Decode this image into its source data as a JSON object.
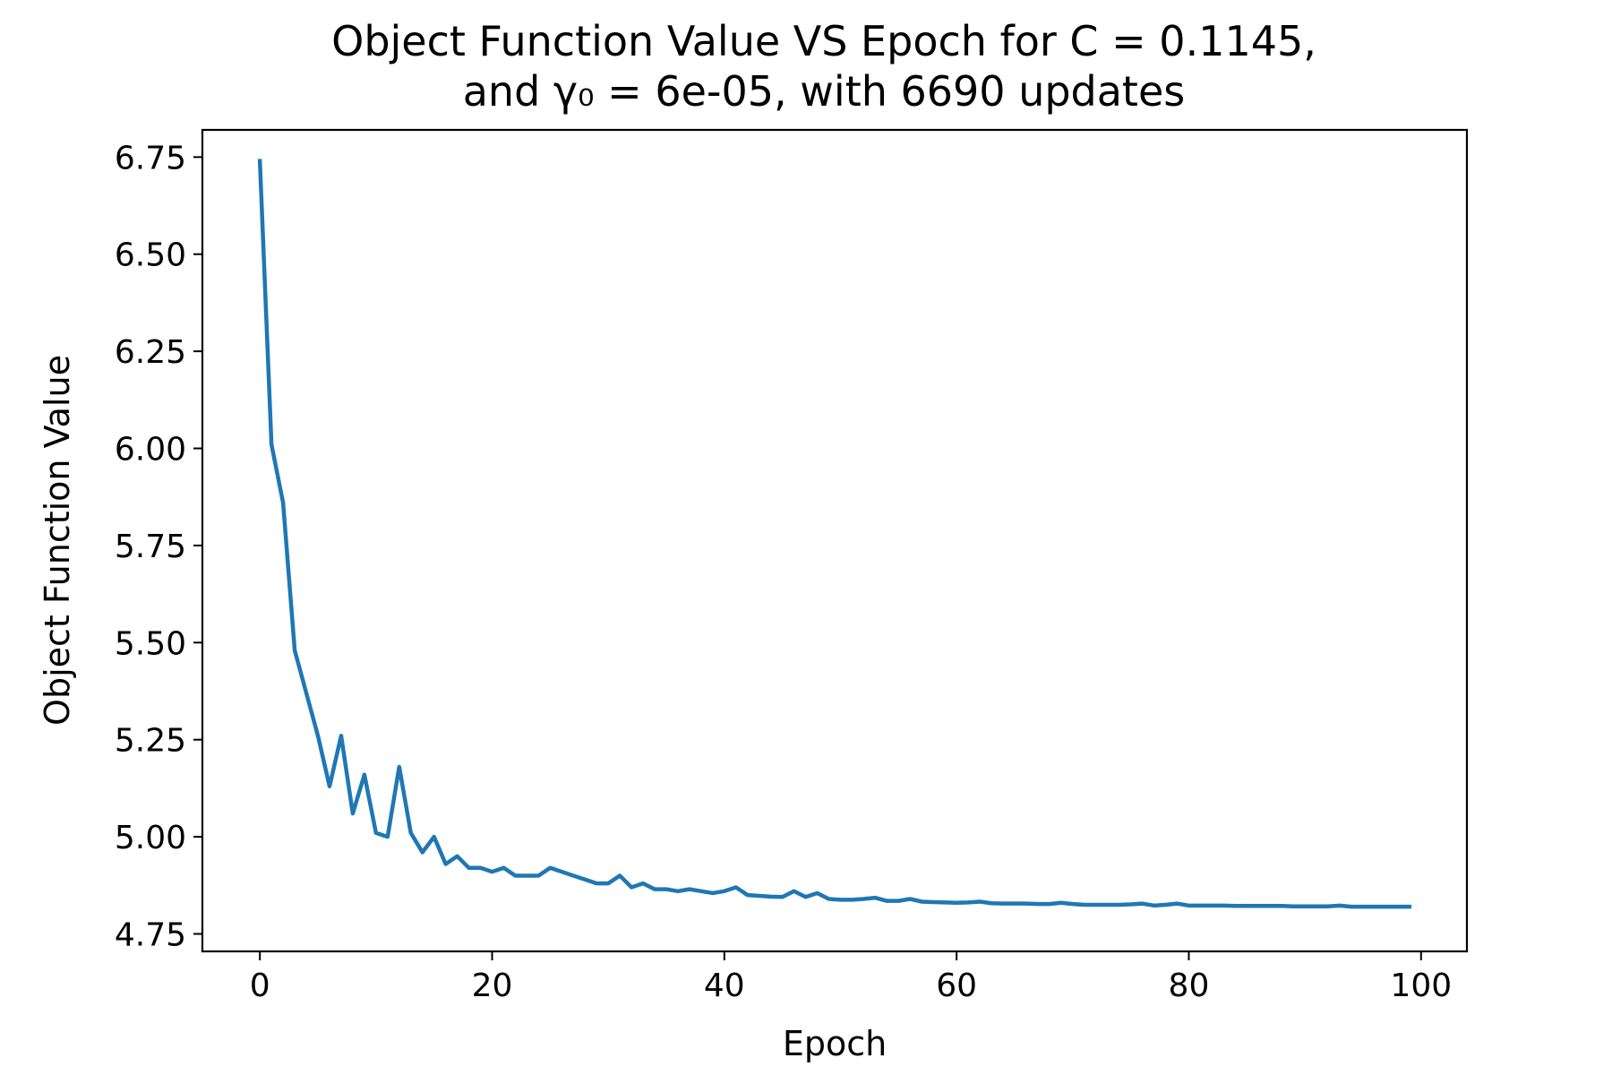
{
  "chart_data": {
    "type": "line",
    "title_line1": "Object Function Value VS Epoch for C = 0.1145,",
    "title_line2": "and γ₀ = 6e-05, with 6690 updates",
    "xlabel": "Epoch",
    "ylabel": "Object Function Value",
    "xlim": [
      -4.95,
      103.95
    ],
    "ylim": [
      4.705,
      6.82
    ],
    "xticks": [
      0,
      20,
      40,
      60,
      80,
      100
    ],
    "yticks": [
      4.75,
      5.0,
      5.25,
      5.5,
      5.75,
      6.0,
      6.25,
      6.5,
      6.75
    ],
    "ytick_labels": [
      "4.75",
      "5.00",
      "5.25",
      "5.50",
      "5.75",
      "6.00",
      "6.25",
      "6.50",
      "6.75"
    ],
    "grid": false,
    "line_color": "#1f77b4",
    "series": [
      {
        "x": [
          0,
          1,
          2,
          3,
          4,
          5,
          6,
          7,
          8,
          9,
          10,
          11,
          12,
          13,
          14,
          15,
          16,
          17,
          18,
          19,
          20,
          21,
          22,
          23,
          24,
          25,
          26,
          27,
          28,
          29,
          30,
          31,
          32,
          33,
          34,
          35,
          36,
          37,
          38,
          39,
          40,
          41,
          42,
          43,
          44,
          45,
          46,
          47,
          48,
          49,
          50,
          51,
          52,
          53,
          54,
          55,
          56,
          57,
          58,
          59,
          60,
          61,
          62,
          63,
          64,
          65,
          66,
          67,
          68,
          69,
          70,
          71,
          72,
          73,
          74,
          75,
          76,
          77,
          78,
          79,
          80,
          81,
          82,
          83,
          84,
          85,
          86,
          87,
          88,
          89,
          90,
          91,
          92,
          93,
          94,
          95,
          96,
          97,
          98,
          99
        ],
        "values": [
          6.74,
          6.01,
          5.86,
          5.48,
          5.37,
          5.26,
          5.13,
          5.26,
          5.06,
          5.16,
          5.01,
          5.0,
          5.18,
          5.01,
          4.96,
          5.0,
          4.93,
          4.95,
          4.92,
          4.92,
          4.91,
          4.92,
          4.9,
          4.9,
          4.9,
          4.92,
          4.91,
          4.9,
          4.89,
          4.88,
          4.88,
          4.9,
          4.87,
          4.88,
          4.865,
          4.865,
          4.86,
          4.865,
          4.86,
          4.855,
          4.86,
          4.87,
          4.85,
          4.848,
          4.846,
          4.845,
          4.86,
          4.845,
          4.855,
          4.84,
          4.838,
          4.838,
          4.84,
          4.843,
          4.835,
          4.835,
          4.84,
          4.833,
          4.832,
          4.831,
          4.83,
          4.831,
          4.833,
          4.829,
          4.828,
          4.828,
          4.828,
          4.827,
          4.827,
          4.83,
          4.827,
          4.825,
          4.825,
          4.825,
          4.825,
          4.826,
          4.828,
          4.823,
          4.825,
          4.828,
          4.823,
          4.823,
          4.823,
          4.823,
          4.822,
          4.822,
          4.822,
          4.822,
          4.822,
          4.821,
          4.821,
          4.821,
          4.821,
          4.823,
          4.82,
          4.82,
          4.82,
          4.82,
          4.82,
          4.82
        ]
      }
    ]
  }
}
